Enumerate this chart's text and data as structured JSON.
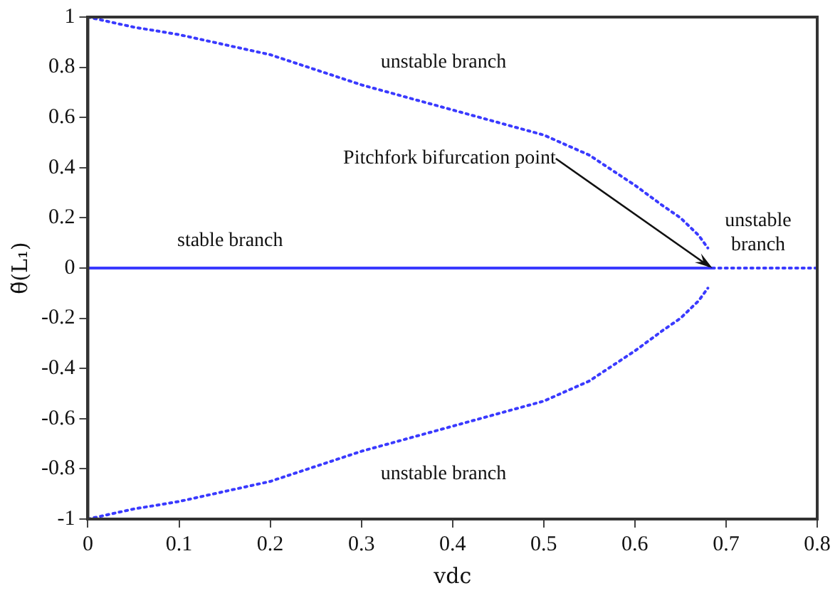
{
  "chart_data": {
    "type": "line",
    "xlabel": "vdc",
    "ylabel": "θ̃(L₁)",
    "xlim": [
      0,
      0.8
    ],
    "xticks": [
      0,
      0.1,
      0.2,
      0.3,
      0.4,
      0.5,
      0.6,
      0.7,
      0.8
    ],
    "ylim": [
      -1,
      1
    ],
    "yticks": [
      -1,
      -0.8,
      -0.6,
      -0.4,
      -0.2,
      0,
      0.2,
      0.4,
      0.6,
      0.8,
      1
    ],
    "grid": false,
    "legend": false,
    "marker": "none",
    "series": [
      {
        "color": "#3a3aff",
        "line_style": "dotted",
        "x": [
          0,
          0.05,
          0.1,
          0.15,
          0.2,
          0.25,
          0.3,
          0.35,
          0.4,
          0.45,
          0.5,
          0.55,
          0.6,
          0.63,
          0.65,
          0.67,
          0.68
        ],
        "values": [
          1,
          0.96,
          0.93,
          0.89,
          0.85,
          0.79,
          0.73,
          0.68,
          0.63,
          0.58,
          0.53,
          0.45,
          0.33,
          0.25,
          0.2,
          0.13,
          0.08
        ]
      },
      {
        "color": "#3a3aff",
        "line_style": "dotted",
        "x": [
          0,
          0.05,
          0.1,
          0.15,
          0.2,
          0.25,
          0.3,
          0.35,
          0.4,
          0.45,
          0.5,
          0.55,
          0.6,
          0.63,
          0.65,
          0.67,
          0.68
        ],
        "values": [
          -1,
          -0.96,
          -0.93,
          -0.89,
          -0.85,
          -0.79,
          -0.73,
          -0.68,
          -0.63,
          -0.58,
          -0.53,
          -0.45,
          -0.33,
          -0.25,
          -0.2,
          -0.13,
          -0.08
        ]
      },
      {
        "color": "#3a3aff",
        "line_style": "solid",
        "x": [
          0,
          0.685
        ],
        "values": [
          0,
          0
        ]
      },
      {
        "color": "#3a3aff",
        "line_style": "dotted",
        "x": [
          0.685,
          0.8
        ],
        "values": [
          0,
          0
        ]
      }
    ],
    "annotations": [
      "unstable branch",
      {
        "text": "Pitchfork bifurcation point",
        "x": 0.685,
        "y": 0
      },
      "stable branch",
      "unstable branch",
      "unstable branch"
    ]
  }
}
